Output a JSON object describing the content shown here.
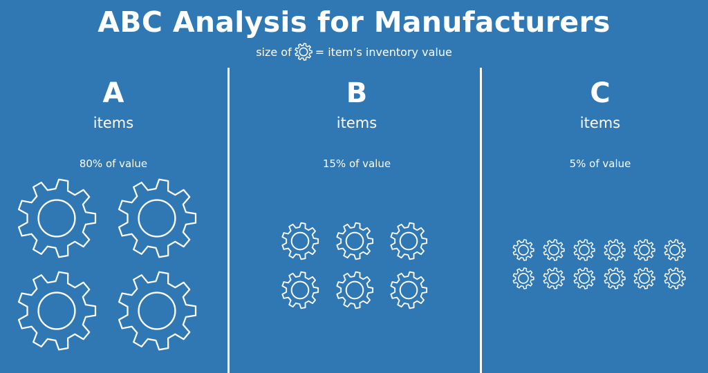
{
  "title": "ABC Analysis for Manufacturers",
  "subtitle": {
    "prefix": "size of",
    "icon": "gear-icon",
    "suffix": "= item’s inventory value"
  },
  "columns": [
    {
      "letter": "A",
      "items_label": "items",
      "value_label": "80% of value",
      "gear_count": 4
    },
    {
      "letter": "B",
      "items_label": "items",
      "value_label": "15% of value",
      "gear_count": 6
    },
    {
      "letter": "C",
      "items_label": "items",
      "value_label": "5% of value",
      "gear_count": 12
    }
  ],
  "colors": {
    "background": "#2f78b4",
    "foreground": "#ffffff"
  }
}
